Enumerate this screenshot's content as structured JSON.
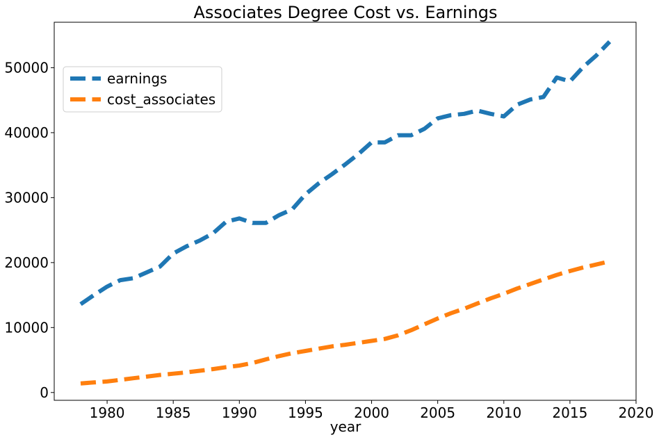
{
  "chart_data": {
    "type": "line",
    "title": "Associates Degree Cost vs. Earnings",
    "xlabel": "year",
    "ylabel": "",
    "xlim": [
      1976,
      2020
    ],
    "ylim": [
      -1200,
      57000
    ],
    "xticks": [
      1980,
      1985,
      1990,
      1995,
      2000,
      2005,
      2010,
      2015,
      2020
    ],
    "yticks": [
      0,
      10000,
      20000,
      30000,
      40000,
      50000
    ],
    "grid": false,
    "legend_position": "upper-left",
    "x": [
      1978,
      1979,
      1980,
      1981,
      1982,
      1983,
      1984,
      1985,
      1986,
      1987,
      1988,
      1989,
      1990,
      1991,
      1992,
      1993,
      1994,
      1995,
      1996,
      1997,
      1998,
      1999,
      2000,
      2001,
      2002,
      2003,
      2004,
      2005,
      2006,
      2007,
      2008,
      2009,
      2010,
      2011,
      2012,
      2013,
      2014,
      2015,
      2016,
      2017,
      2018
    ],
    "series": [
      {
        "name": "earnings",
        "color": "#1f77b4",
        "values": [
          13600,
          15000,
          16300,
          17300,
          17600,
          18500,
          19400,
          21400,
          22500,
          23400,
          24500,
          26300,
          26800,
          26100,
          26100,
          27300,
          28200,
          30500,
          32200,
          33600,
          35100,
          36700,
          38500,
          38500,
          39600,
          39600,
          40600,
          42200,
          42700,
          42900,
          43400,
          42900,
          42500,
          44300,
          45100,
          45500,
          48500,
          47900,
          50100,
          51900,
          54000
        ]
      },
      {
        "name": "cost_associates",
        "color": "#ff7f0e",
        "values": [
          1400,
          1550,
          1700,
          1950,
          2200,
          2450,
          2700,
          2900,
          3100,
          3350,
          3600,
          3900,
          4150,
          4550,
          5100,
          5600,
          6050,
          6400,
          6750,
          7100,
          7350,
          7650,
          7950,
          8250,
          8800,
          9600,
          10500,
          11400,
          12200,
          12900,
          13700,
          14500,
          15200,
          16000,
          16700,
          17400,
          18100,
          18700,
          19250,
          19700,
          20200
        ]
      }
    ]
  }
}
